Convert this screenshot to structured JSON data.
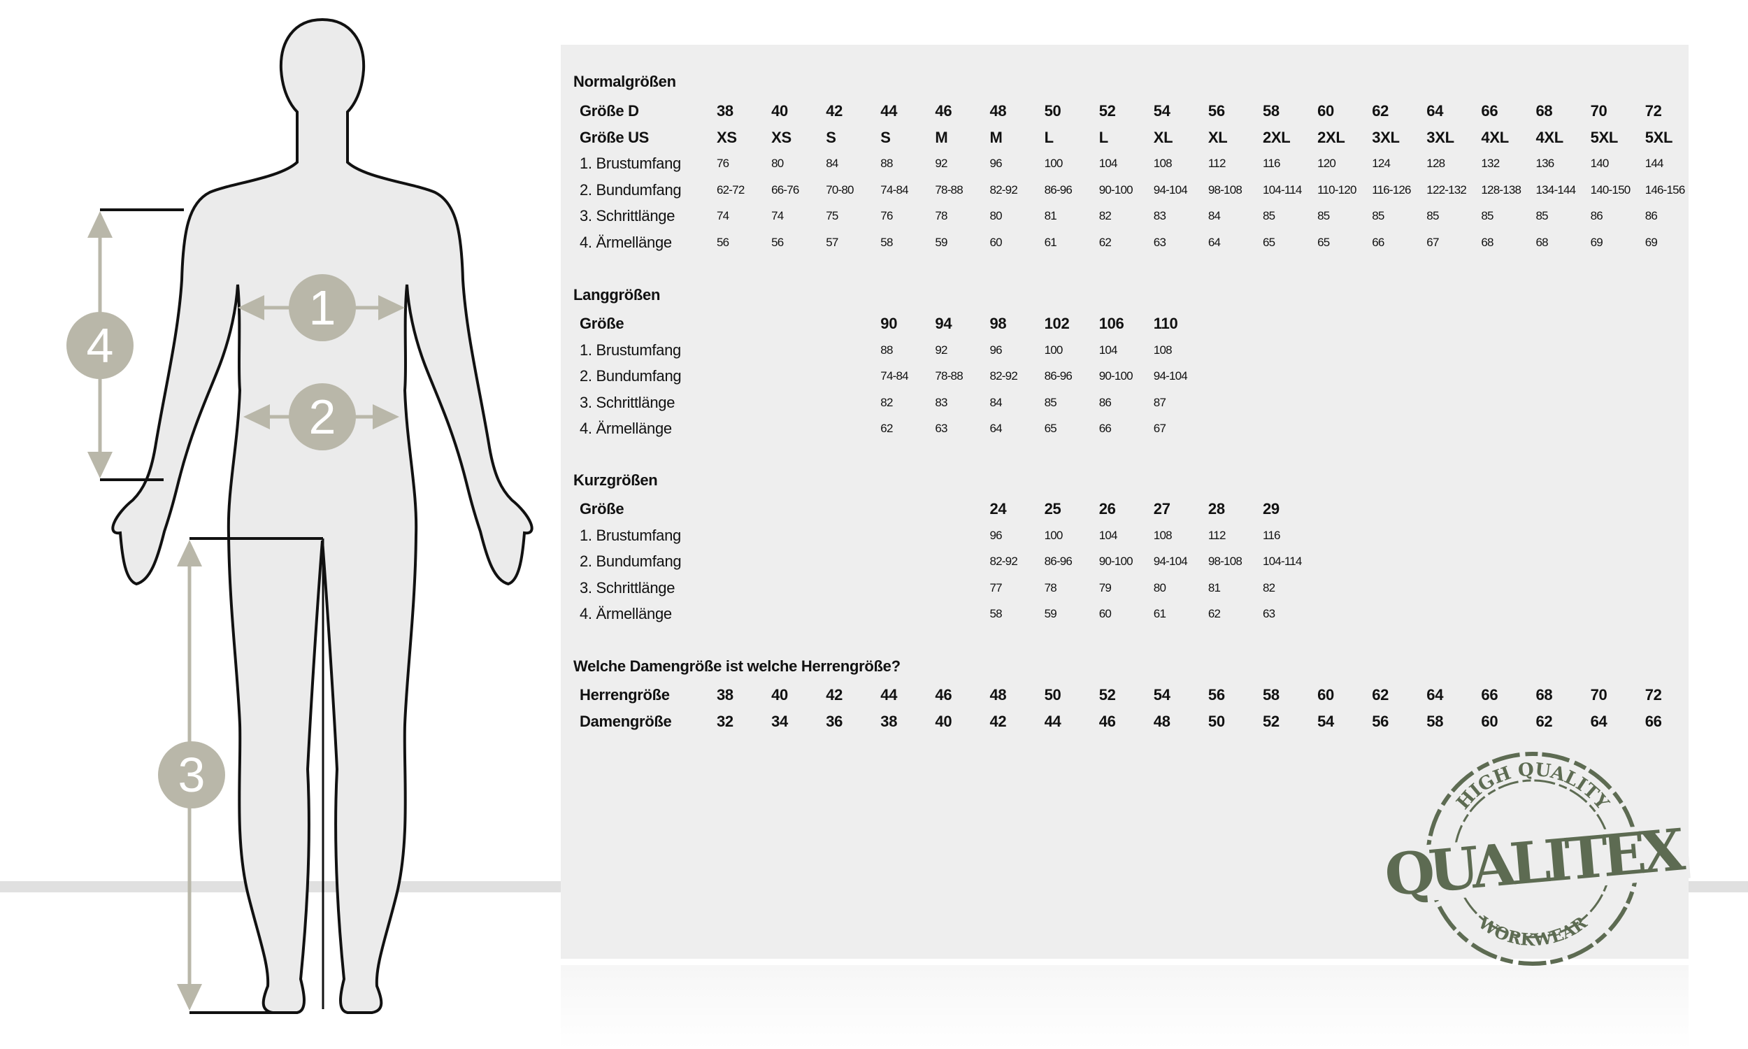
{
  "sections": [
    {
      "title": "Normalgrößen",
      "header_rows": [
        {
          "label": "Größe D",
          "values": [
            "38",
            "40",
            "42",
            "44",
            "46",
            "48",
            "50",
            "52",
            "54",
            "56",
            "58",
            "60",
            "62",
            "64",
            "66",
            "68",
            "70",
            "72"
          ]
        },
        {
          "label": "Größe US",
          "values": [
            "XS",
            "XS",
            "S",
            "S",
            "M",
            "M",
            "L",
            "L",
            "XL",
            "XL",
            "2XL",
            "2XL",
            "3XL",
            "3XL",
            "4XL",
            "4XL",
            "5XL",
            "5XL"
          ]
        }
      ],
      "rows": [
        {
          "label": "1. Brustumfang",
          "values": [
            "76",
            "80",
            "84",
            "88",
            "92",
            "96",
            "100",
            "104",
            "108",
            "112",
            "116",
            "120",
            "124",
            "128",
            "132",
            "136",
            "140",
            "144"
          ]
        },
        {
          "label": "2. Bundumfang",
          "values": [
            "62-72",
            "66-76",
            "70-80",
            "74-84",
            "78-88",
            "82-92",
            "86-96",
            "90-100",
            "94-104",
            "98-108",
            "104-114",
            "110-120",
            "116-126",
            "122-132",
            "128-138",
            "134-144",
            "140-150",
            "146-156"
          ]
        },
        {
          "label": "3. Schrittlänge",
          "values": [
            "74",
            "74",
            "75",
            "76",
            "78",
            "80",
            "81",
            "82",
            "83",
            "84",
            "85",
            "85",
            "85",
            "85",
            "85",
            "85",
            "86",
            "86"
          ]
        },
        {
          "label": "4. Ärmellänge",
          "values": [
            "56",
            "56",
            "57",
            "58",
            "59",
            "60",
            "61",
            "62",
            "63",
            "64",
            "65",
            "65",
            "66",
            "67",
            "68",
            "68",
            "69",
            "69"
          ]
        }
      ]
    },
    {
      "title": "Langgrößen",
      "header_rows": [
        {
          "label": "Größe",
          "values": [
            "90",
            "94",
            "98",
            "102",
            "106",
            "110"
          ]
        }
      ],
      "rows": [
        {
          "label": "1. Brustumfang",
          "values": [
            "88",
            "92",
            "96",
            "100",
            "104",
            "108"
          ]
        },
        {
          "label": "2. Bundumfang",
          "values": [
            "74-84",
            "78-88",
            "82-92",
            "86-96",
            "90-100",
            "94-104"
          ]
        },
        {
          "label": "3. Schrittlänge",
          "values": [
            "82",
            "83",
            "84",
            "85",
            "86",
            "87"
          ]
        },
        {
          "label": "4. Ärmellänge",
          "values": [
            "62",
            "63",
            "64",
            "65",
            "66",
            "67"
          ]
        }
      ]
    },
    {
      "title": "Kurzgrößen",
      "header_rows": [
        {
          "label": "Größe",
          "values": [
            "24",
            "25",
            "26",
            "27",
            "28",
            "29"
          ]
        }
      ],
      "rows": [
        {
          "label": "1. Brustumfang",
          "values": [
            "96",
            "100",
            "104",
            "108",
            "112",
            "116"
          ]
        },
        {
          "label": "2. Bundumfang",
          "values": [
            "82-92",
            "86-96",
            "90-100",
            "94-104",
            "98-108",
            "104-114"
          ]
        },
        {
          "label": "3. Schrittlänge",
          "values": [
            "77",
            "78",
            "79",
            "80",
            "81",
            "82"
          ]
        },
        {
          "label": "4. Ärmellänge",
          "values": [
            "58",
            "59",
            "60",
            "61",
            "62",
            "63"
          ]
        }
      ]
    },
    {
      "title": "Welche Damengröße ist welche Herrengröße?",
      "header_rows": [
        {
          "label": "Herrengröße",
          "values": [
            "38",
            "40",
            "42",
            "44",
            "46",
            "48",
            "50",
            "52",
            "54",
            "56",
            "58",
            "60",
            "62",
            "64",
            "66",
            "68",
            "70",
            "72"
          ]
        },
        {
          "label": "Damengröße",
          "values": [
            "32",
            "34",
            "36",
            "38",
            "40",
            "42",
            "44",
            "46",
            "48",
            "50",
            "52",
            "54",
            "56",
            "58",
            "60",
            "62",
            "64",
            "66"
          ]
        }
      ],
      "rows": []
    }
  ],
  "figure": {
    "markers": [
      "1",
      "2",
      "3",
      "4"
    ],
    "marker_color": "#b9b7a9",
    "outline_color": "#111111",
    "body_fill": "#ebebeb"
  },
  "logo": {
    "top_text": "HIGH QUALITY",
    "main_text": "QUALITEX",
    "bottom_text": "WORKWEAR",
    "color": "#5d6b52"
  }
}
